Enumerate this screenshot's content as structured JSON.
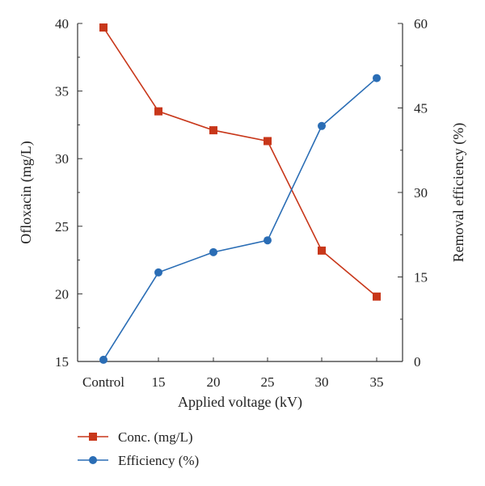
{
  "chart_data": {
    "type": "line",
    "categories": [
      "Control",
      "15",
      "20",
      "25",
      "30",
      "35"
    ],
    "xlabel": "Applied voltage (kV)",
    "ylabel_left": "Ofloxacin (mg/L)",
    "ylabel_right": "Removal efficiency (%)",
    "ylim_left": [
      15,
      40
    ],
    "yticks_left": [
      15,
      20,
      25,
      30,
      35,
      40
    ],
    "ylim_right": [
      0,
      60
    ],
    "yticks_right": [
      0,
      15,
      30,
      45,
      60
    ],
    "grid": false,
    "legend_position": "bottom-left",
    "series": [
      {
        "name": "Conc. (mg/L)",
        "axis": "left",
        "color": "#c8371a",
        "marker": "square",
        "values": [
          39.7,
          33.5,
          32.1,
          31.3,
          23.2,
          19.8
        ]
      },
      {
        "name": "Efficiency (%)",
        "axis": "right",
        "color": "#2a6db5",
        "marker": "circle",
        "values": [
          0.3,
          15.8,
          19.4,
          21.5,
          41.8,
          50.3
        ]
      }
    ]
  }
}
